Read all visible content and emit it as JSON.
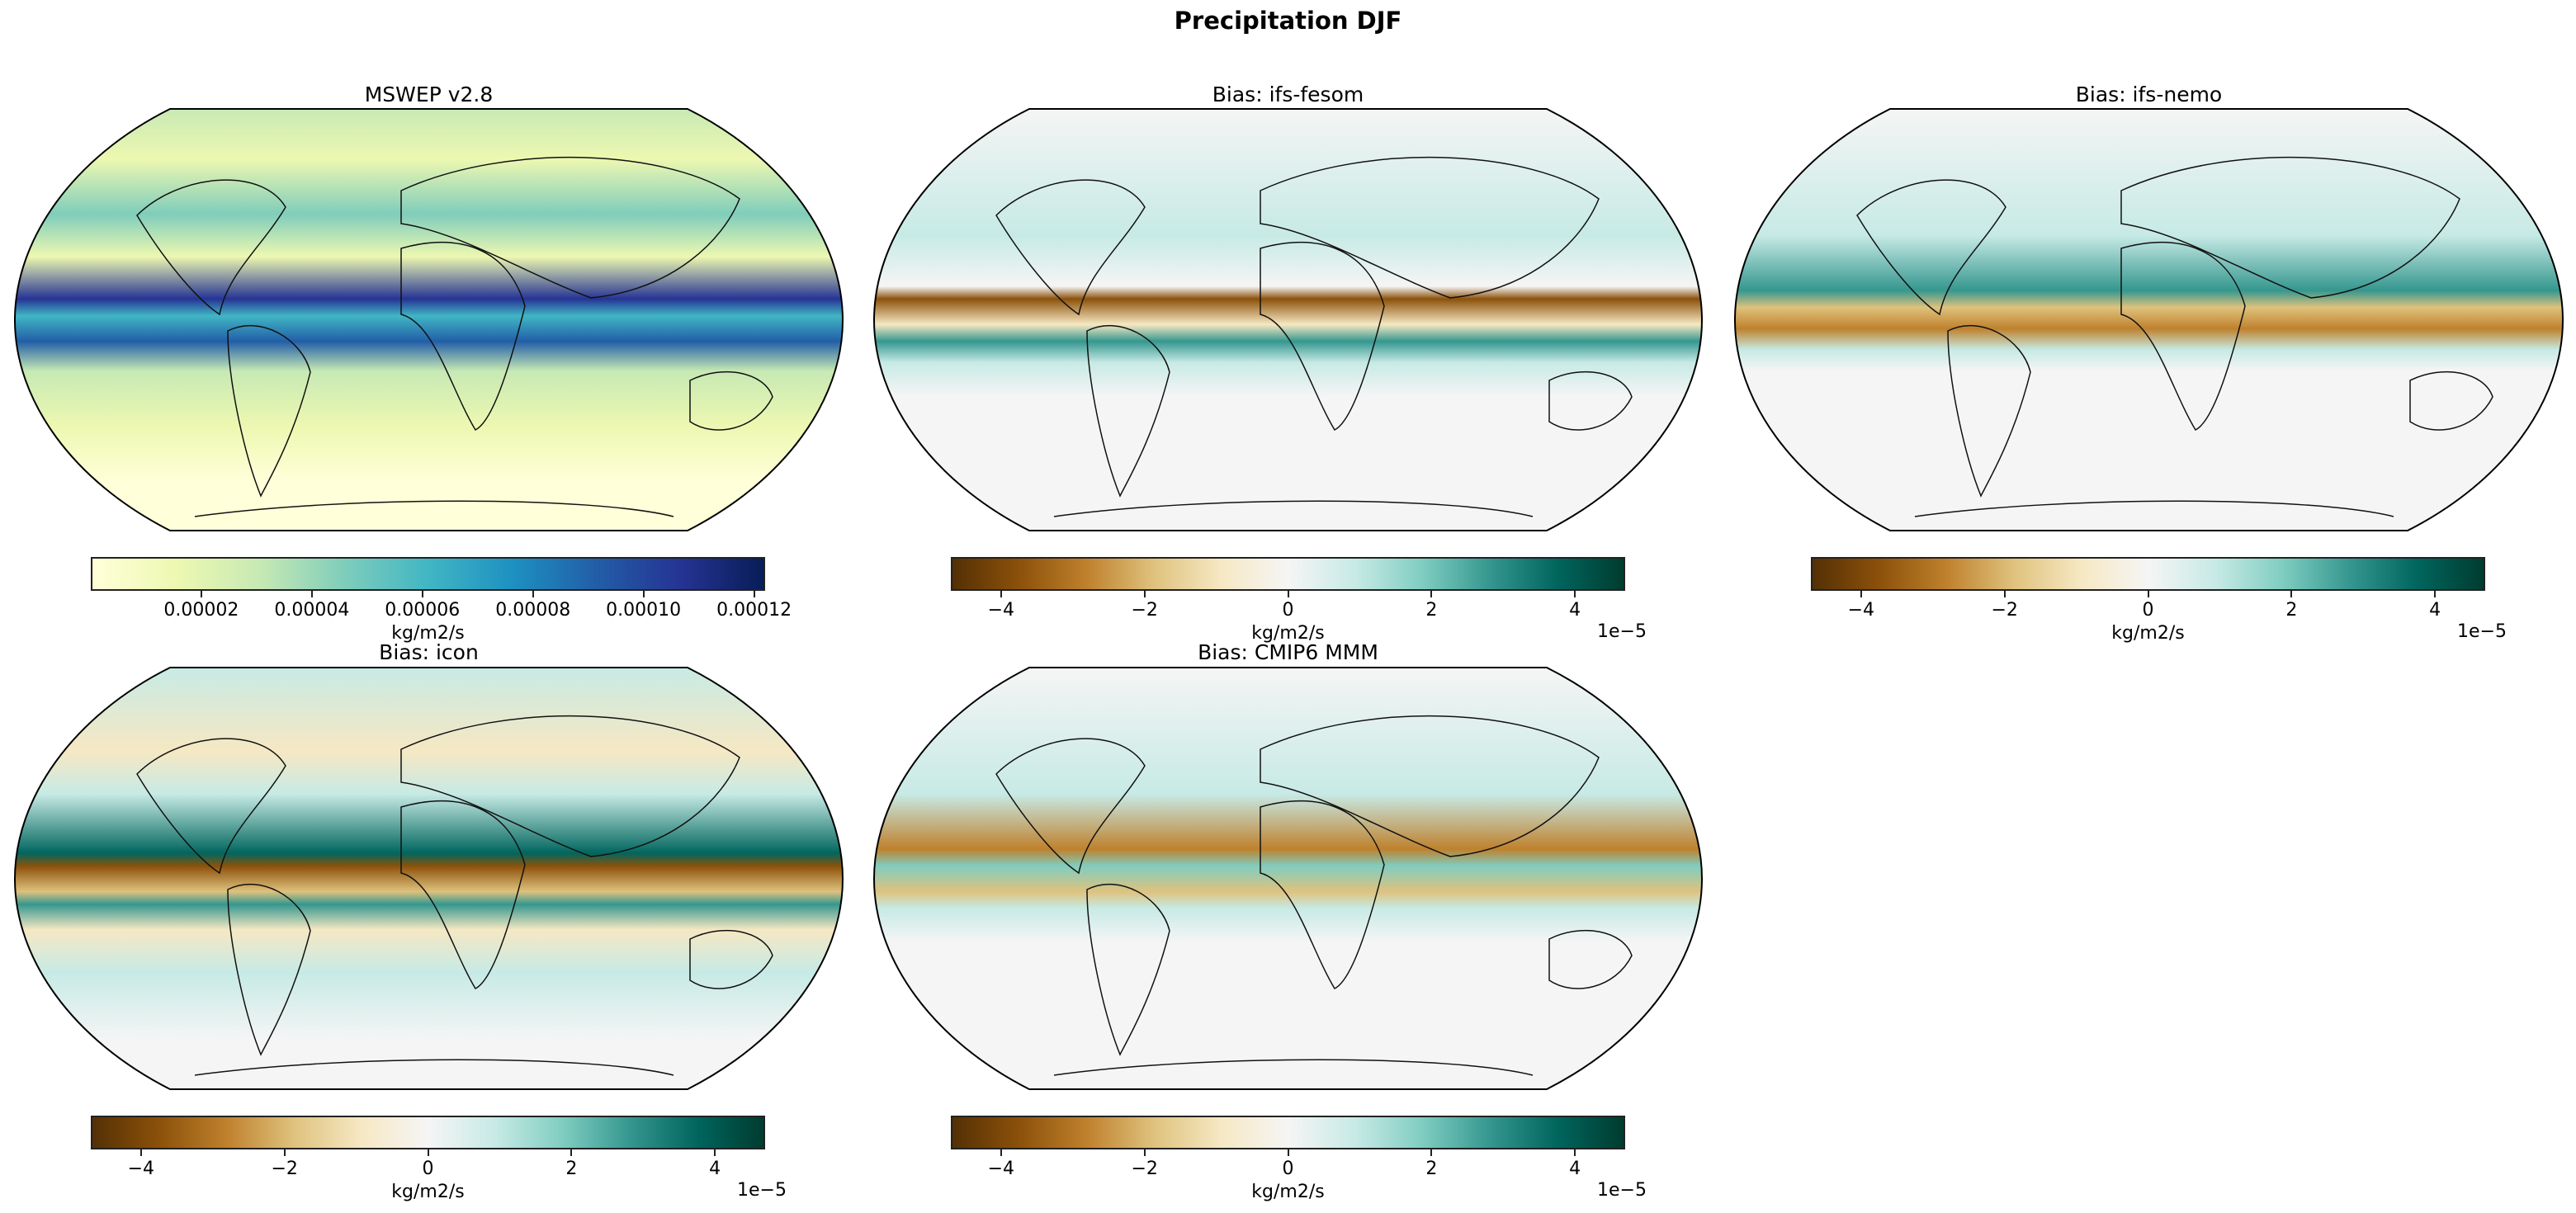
{
  "suptitle": "Precipitation DJF",
  "chart_data": {
    "type": "heatmap",
    "title": "Precipitation DJF",
    "projection": "Robinson",
    "panels": [
      {
        "title": "MSWEP v2.8",
        "colormap": "YlGnBu",
        "colors": [
          "#ffffd9",
          "#edf8b1",
          "#c7e9b4",
          "#7fcdbb",
          "#41b6c4",
          "#1d91c0",
          "#225ea8",
          "#253494",
          "#081d58"
        ],
        "range": [
          0,
          0.000122
        ],
        "ticks": [
          "0.00002",
          "0.00004",
          "0.00006",
          "0.00008",
          "0.00010",
          "0.00012"
        ],
        "tick_values": [
          2e-05,
          4e-05,
          6e-05,
          8e-05,
          0.0001,
          0.00012
        ],
        "unit": "kg/m2/s",
        "offset": ""
      },
      {
        "title": "Bias: ifs-fesom",
        "colormap": "BrBG",
        "colors": [
          "#543005",
          "#8c510a",
          "#bf812d",
          "#dfc27d",
          "#f6e8c3",
          "#f5f5f5",
          "#c7eae5",
          "#80cdc1",
          "#35978f",
          "#01665e",
          "#003c30"
        ],
        "range": [
          -4.7,
          4.7
        ],
        "ticks": [
          "−4",
          "−2",
          "0",
          "2",
          "4"
        ],
        "tick_values": [
          -4,
          -2,
          0,
          2,
          4
        ],
        "unit": "kg/m2/s",
        "offset": "1e−5"
      },
      {
        "title": "Bias: ifs-nemo",
        "colormap": "BrBG",
        "colors": [
          "#543005",
          "#8c510a",
          "#bf812d",
          "#dfc27d",
          "#f6e8c3",
          "#f5f5f5",
          "#c7eae5",
          "#80cdc1",
          "#35978f",
          "#01665e",
          "#003c30"
        ],
        "range": [
          -4.7,
          4.7
        ],
        "ticks": [
          "−4",
          "−2",
          "0",
          "2",
          "4"
        ],
        "tick_values": [
          -4,
          -2,
          0,
          2,
          4
        ],
        "unit": "kg/m2/s",
        "offset": "1e−5"
      },
      {
        "title": "Bias: icon",
        "colormap": "BrBG",
        "colors": [
          "#543005",
          "#8c510a",
          "#bf812d",
          "#dfc27d",
          "#f6e8c3",
          "#f5f5f5",
          "#c7eae5",
          "#80cdc1",
          "#35978f",
          "#01665e",
          "#003c30"
        ],
        "range": [
          -4.7,
          4.7
        ],
        "ticks": [
          "−4",
          "−2",
          "0",
          "2",
          "4"
        ],
        "tick_values": [
          -4,
          -2,
          0,
          2,
          4
        ],
        "unit": "kg/m2/s",
        "offset": "1e−5"
      },
      {
        "title": "Bias: CMIP6 MMM",
        "colormap": "BrBG",
        "colors": [
          "#543005",
          "#8c510a",
          "#bf812d",
          "#dfc27d",
          "#f6e8c3",
          "#f5f5f5",
          "#c7eae5",
          "#80cdc1",
          "#35978f",
          "#01665e",
          "#003c30"
        ],
        "range": [
          -4.7,
          4.7
        ],
        "ticks": [
          "−4",
          "−2",
          "0",
          "2",
          "4"
        ],
        "tick_values": [
          -4,
          -2,
          0,
          2,
          4
        ],
        "unit": "kg/m2/s",
        "offset": "1e−5"
      }
    ]
  }
}
